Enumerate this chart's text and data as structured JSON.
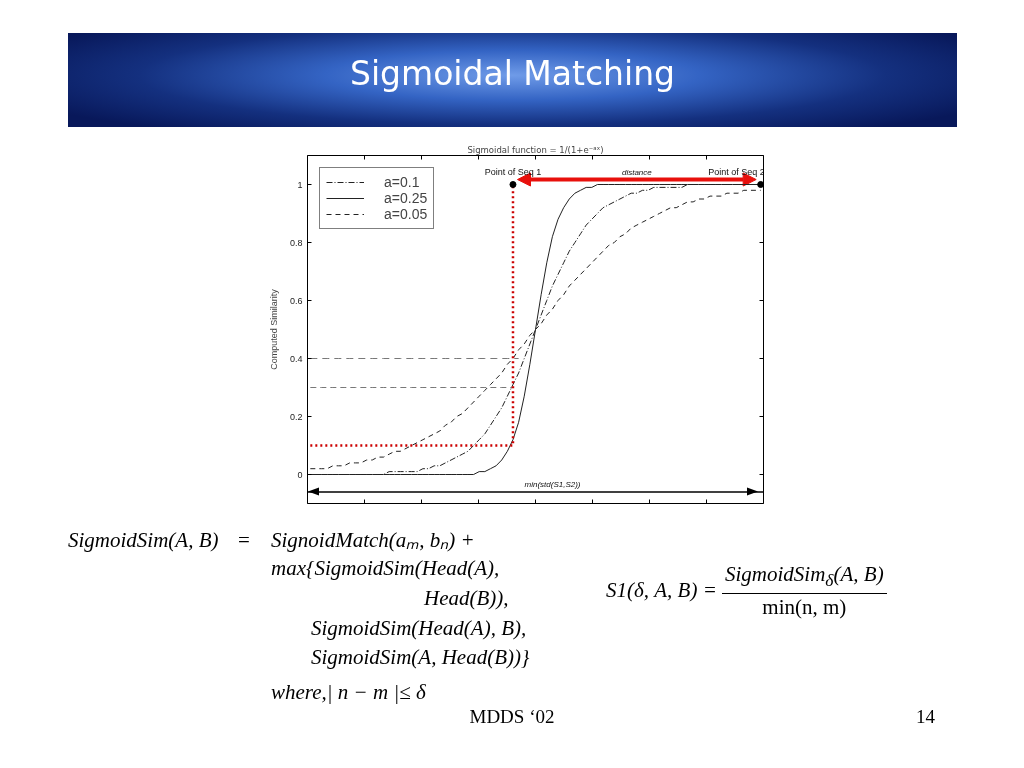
{
  "chart_data": {
    "type": "line",
    "title": "Sigmoidal Matching",
    "subtitle": "Sigmoidal function = 1/(1+e⁻ᵃˣ)",
    "ylabel": "Computed Similarity",
    "categories": [
      null,
      null,
      null,
      null,
      null,
      null,
      null,
      null,
      null,
      null,
      null,
      null,
      null,
      null,
      null,
      null,
      null,
      null,
      null,
      null,
      null,
      null,
      null,
      null,
      null,
      null,
      null,
      null,
      null,
      null,
      null,
      null,
      null,
      null,
      null,
      null,
      null,
      null,
      null,
      null,
      null,
      null,
      null,
      null,
      null,
      null,
      null,
      null,
      null,
      null,
      null,
      null,
      null,
      null,
      null,
      null,
      null,
      null,
      null,
      null,
      null,
      null,
      null,
      null,
      null,
      null,
      null,
      null,
      null,
      null,
      null,
      null,
      null,
      null,
      null,
      null,
      null,
      null,
      null,
      null,
      null
    ],
    "ylim": [
      -0.1,
      1.1
    ],
    "yticks": [
      0,
      0.2,
      0.4,
      0.6,
      0.8,
      1
    ],
    "grid": false,
    "legend": "top left",
    "tick_labels": "y",
    "series": [
      {
        "name": "a=0.1",
        "color": "#222222",
        "line_style": "dashdot",
        "values": [
          0,
          0,
          0,
          0,
          0,
          0,
          0,
          0,
          0,
          0,
          0,
          0,
          0,
          0,
          0.01,
          0.01,
          0.01,
          0.01,
          0.01,
          0.01,
          0.02,
          0.02,
          0.03,
          0.03,
          0.04,
          0.05,
          0.06,
          0.07,
          0.08,
          0.1,
          0.12,
          0.14,
          0.17,
          0.2,
          0.23,
          0.27,
          0.31,
          0.35,
          0.4,
          0.45,
          0.5,
          0.55,
          0.6,
          0.65,
          0.69,
          0.73,
          0.77,
          0.8,
          0.83,
          0.86,
          0.88,
          0.9,
          0.92,
          0.93,
          0.94,
          0.95,
          0.96,
          0.97,
          0.97,
          0.98,
          0.98,
          0.99,
          0.99,
          0.99,
          0.99,
          0.99,
          0.99,
          1,
          1,
          1,
          1,
          1,
          1,
          1,
          1,
          1,
          1,
          1,
          1,
          1,
          1
        ]
      },
      {
        "name": "a=0.25",
        "color": "#222222",
        "line_style": "solid",
        "values": [
          0,
          0,
          0,
          0,
          0,
          0,
          0,
          0,
          0,
          0,
          0,
          0,
          0,
          0,
          0,
          0,
          0,
          0,
          0,
          0,
          0,
          0,
          0,
          0,
          0,
          0,
          0,
          0,
          0,
          0,
          0.01,
          0.01,
          0.02,
          0.03,
          0.05,
          0.08,
          0.12,
          0.18,
          0.27,
          0.38,
          0.5,
          0.62,
          0.73,
          0.82,
          0.88,
          0.92,
          0.95,
          0.97,
          0.98,
          0.99,
          0.99,
          1,
          1,
          1,
          1,
          1,
          1,
          1,
          1,
          1,
          1,
          1,
          1,
          1,
          1,
          1,
          1,
          1,
          1,
          1,
          1,
          1,
          1,
          1,
          1,
          1,
          1,
          1,
          1,
          1,
          1
        ]
      },
      {
        "name": "a=0.05",
        "color": "#222222",
        "line_style": "dashed",
        "values": [
          0.02,
          0.02,
          0.02,
          0.02,
          0.03,
          0.03,
          0.03,
          0.04,
          0.04,
          0.04,
          0.05,
          0.05,
          0.06,
          0.06,
          0.07,
          0.08,
          0.08,
          0.09,
          0.1,
          0.11,
          0.12,
          0.13,
          0.14,
          0.15,
          0.17,
          0.18,
          0.2,
          0.21,
          0.23,
          0.25,
          0.27,
          0.29,
          0.31,
          0.33,
          0.35,
          0.38,
          0.4,
          0.43,
          0.45,
          0.48,
          0.5,
          0.52,
          0.55,
          0.57,
          0.6,
          0.62,
          0.65,
          0.67,
          0.69,
          0.71,
          0.73,
          0.75,
          0.77,
          0.79,
          0.8,
          0.82,
          0.83,
          0.85,
          0.86,
          0.87,
          0.88,
          0.89,
          0.9,
          0.91,
          0.92,
          0.92,
          0.93,
          0.94,
          0.94,
          0.95,
          0.95,
          0.96,
          0.96,
          0.96,
          0.97,
          0.97,
          0.97,
          0.98,
          0.98,
          0.98,
          0.98
        ]
      },
      {
        "color": "#555555",
        "line_style": "dashed",
        "values": [
          0.4,
          0.4,
          0.4,
          0.4,
          0.4,
          0.4,
          0.4,
          0.4,
          0.4,
          0.4,
          0.4,
          0.4,
          0.4,
          0.4,
          0.4,
          0.4,
          0.4,
          0.4,
          0.4,
          0.4,
          0.4,
          0.4,
          0.4,
          0.4,
          0.4,
          0.4,
          0.4,
          0.4,
          0.4,
          0.4,
          0.4,
          0.4,
          0.4,
          0.4,
          0.4,
          0.4,
          0.4,
          0.4,
          null,
          null,
          null,
          null,
          null,
          null,
          null,
          null,
          null,
          null,
          null,
          null,
          null,
          null,
          null,
          null,
          null,
          null,
          null,
          null,
          null,
          null,
          null,
          null,
          null,
          null,
          null,
          null,
          null,
          null,
          null,
          null,
          null,
          null,
          null,
          null,
          null,
          null,
          null,
          null,
          null,
          null,
          null
        ]
      },
      {
        "color": "#555555",
        "line_style": "dashed",
        "values": [
          0.3,
          0.3,
          0.3,
          0.3,
          0.3,
          0.3,
          0.3,
          0.3,
          0.3,
          0.3,
          0.3,
          0.3,
          0.3,
          0.3,
          0.3,
          0.3,
          0.3,
          0.3,
          0.3,
          0.3,
          0.3,
          0.3,
          0.3,
          0.3,
          0.3,
          0.3,
          0.3,
          0.3,
          0.3,
          0.3,
          0.3,
          0.3,
          0.3,
          0.3,
          0.3,
          0.3,
          0.3,
          null,
          null,
          null,
          null,
          null,
          null,
          null,
          null,
          null,
          null,
          null,
          null,
          null,
          null,
          null,
          null,
          null,
          null,
          null,
          null,
          null,
          null,
          null,
          null,
          null,
          null,
          null,
          null,
          null,
          null,
          null,
          null,
          null,
          null,
          null,
          null,
          null,
          null,
          null,
          null,
          null,
          null,
          null,
          null
        ]
      },
      {
        "type": "step",
        "color": "#cc0000",
        "line_style": "dotted",
        "values": [
          0.1,
          0.1,
          0.1,
          0.1,
          0.1,
          0.1,
          0.1,
          0.1,
          0.1,
          0.1,
          0.1,
          0.1,
          0.1,
          0.1,
          0.1,
          0.1,
          0.1,
          0.1,
          0.1,
          0.1,
          0.1,
          0.1,
          0.1,
          0.1,
          0.1,
          0.1,
          0.1,
          0.1,
          0.1,
          0.1,
          0.1,
          0.1,
          0.1,
          0.1,
          0.1,
          0.1,
          1,
          null,
          null,
          null,
          null,
          null,
          null,
          null,
          null,
          null,
          null,
          null,
          null,
          null,
          null,
          null,
          null,
          null,
          null,
          null,
          null,
          null,
          null,
          null,
          null,
          null,
          null,
          null,
          null,
          null,
          null,
          null,
          null,
          null,
          null,
          null,
          null,
          null,
          null,
          null,
          null,
          null,
          null,
          null,
          null
        ]
      },
      {
        "type": "scatter",
        "color": "#000000",
        "marker": "circle",
        "values": [
          null,
          null,
          null,
          null,
          null,
          null,
          null,
          null,
          null,
          null,
          null,
          null,
          null,
          null,
          null,
          null,
          null,
          null,
          null,
          null,
          null,
          null,
          null,
          null,
          null,
          null,
          null,
          null,
          null,
          null,
          null,
          null,
          null,
          null,
          null,
          null,
          1,
          null,
          null,
          null,
          null,
          null,
          null,
          null,
          null,
          null,
          null,
          null,
          null,
          null,
          null,
          null,
          null,
          null,
          null,
          null,
          null,
          null,
          null,
          null,
          null,
          null,
          null,
          null,
          null,
          null,
          null,
          null,
          null,
          null,
          null,
          null,
          null,
          null,
          null,
          null,
          null,
          null,
          null,
          null,
          1
        ],
        "value_labels": [
          null,
          null,
          null,
          null,
          null,
          null,
          null,
          null,
          null,
          null,
          null,
          null,
          null,
          null,
          null,
          null,
          null,
          null,
          null,
          null,
          null,
          null,
          null,
          null,
          null,
          null,
          null,
          null,
          null,
          null,
          null,
          null,
          null,
          null,
          null,
          null,
          "Point of Seq 1",
          null,
          null,
          null,
          null,
          null,
          null,
          null,
          null,
          null,
          null,
          null,
          null,
          null,
          null,
          null,
          null,
          null,
          null,
          null,
          null,
          null,
          null,
          null,
          null,
          null,
          null,
          null,
          null,
          null,
          null,
          null,
          null,
          null,
          null,
          null,
          null,
          null,
          null,
          null,
          null,
          null,
          null,
          null,
          "Point of Seq 2"
        ]
      }
    ],
    "ref_lines": [
      {
        "axis": "y",
        "value": -0.06,
        "label": "min(std(S1,S2))",
        "color": "#000000"
      }
    ],
    "annotations": [
      "distance",
      "SigmoidSim(A, B)",
      "=",
      "SignoidMatch(aₘ, bₙ) +",
      "max{SigmoidSim(Head(A),",
      "Head(B)),",
      "SigmoidSim(Head(A), B),",
      "SigmoidSim(A, Head(B))}",
      "where,| n − m |≤ δ",
      "S1(δ, A, B) =",
      "SigmoidSim$_{δ}$(A, B)",
      "min(n, m)",
      "MDDS ‘02",
      "14"
    ]
  }
}
